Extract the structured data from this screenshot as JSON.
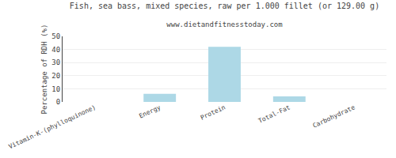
{
  "chart_data": {
    "type": "bar",
    "title": "Fish, sea bass, mixed species, raw per 1.000 fillet (or 129.00 g)",
    "subtitle": "www.dietandfitnesstoday.com",
    "ylabel": "Percentage of RDH (%)",
    "categories": [
      "Vitamin-K-(phylloquinone)",
      "Energy",
      "Protein",
      "Total-Fat",
      "Carbohydrate"
    ],
    "values": [
      0.0,
      6.2,
      42.0,
      4.2,
      0.0
    ],
    "color": "#add8e6",
    "ylim": [
      0,
      50
    ],
    "yticks": [
      0,
      10,
      20,
      30,
      40,
      50
    ],
    "grid": true
  }
}
